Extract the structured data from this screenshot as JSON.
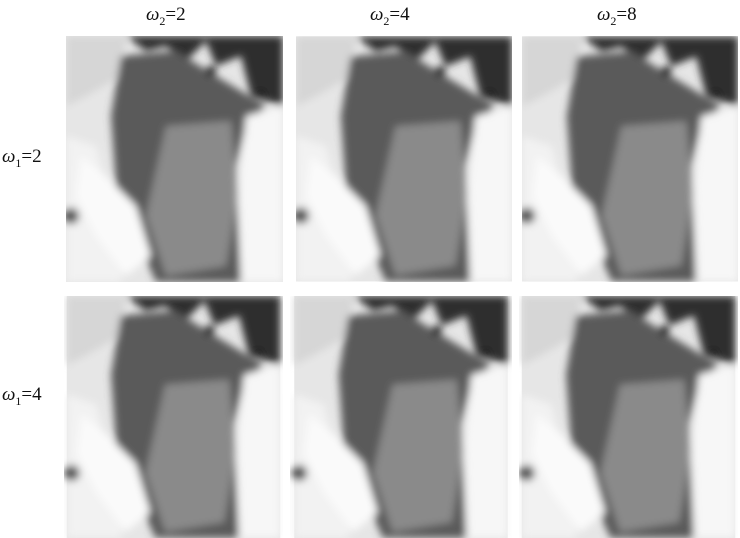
{
  "columns": [
    {
      "symbol": "ω",
      "sub": "2",
      "eq": "=2"
    },
    {
      "symbol": "ω",
      "sub": "2",
      "eq": "=4"
    },
    {
      "symbol": "ω",
      "sub": "2",
      "eq": "=8"
    }
  ],
  "rows": [
    {
      "symbol": "ω",
      "sub": "1",
      "eq": "=2"
    },
    {
      "symbol": "ω",
      "sub": "1",
      "eq": "=4"
    }
  ]
}
